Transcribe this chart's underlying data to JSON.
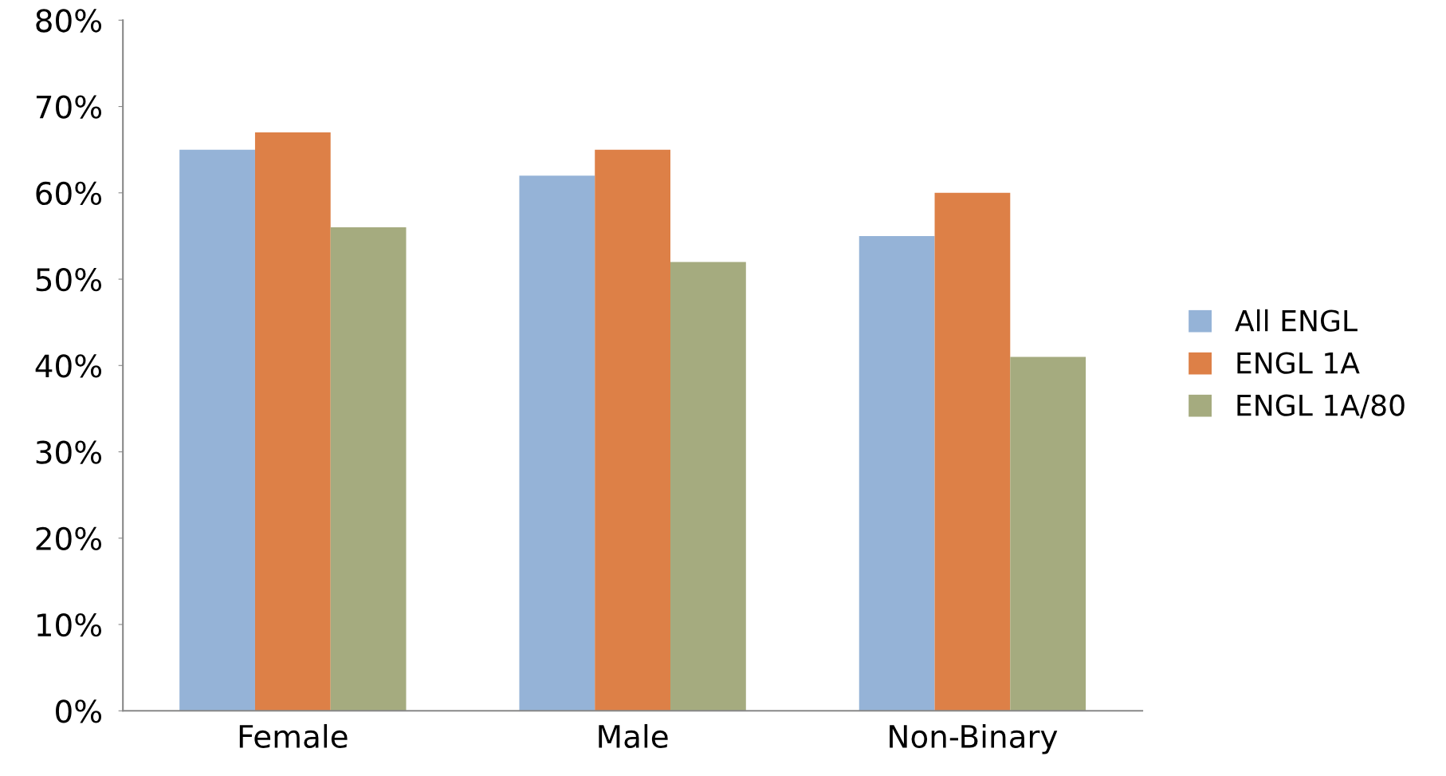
{
  "chart_data": {
    "type": "bar",
    "categories": [
      "Female",
      "Male",
      "Non-Binary"
    ],
    "series": [
      {
        "name": "All ENGL",
        "color": "#95b3d7",
        "values": [
          65,
          62,
          55
        ]
      },
      {
        "name": "ENGL 1A",
        "color": "#dd8047",
        "values": [
          67,
          65,
          60
        ]
      },
      {
        "name": "ENGL 1A/80",
        "color": "#a5ab7f",
        "values": [
          56,
          52,
          41
        ]
      }
    ],
    "ylim": [
      0,
      80
    ],
    "yticks": [
      {
        "value": 0,
        "label": "0%"
      },
      {
        "value": 10,
        "label": "10%"
      },
      {
        "value": 20,
        "label": "20%"
      },
      {
        "value": 30,
        "label": "30%"
      },
      {
        "value": 40,
        "label": "40%"
      },
      {
        "value": 50,
        "label": "50%"
      },
      {
        "value": 60,
        "label": "60%"
      },
      {
        "value": 70,
        "label": "70%"
      },
      {
        "value": 80,
        "label": "80%"
      }
    ],
    "grid": false,
    "legend": "right"
  }
}
